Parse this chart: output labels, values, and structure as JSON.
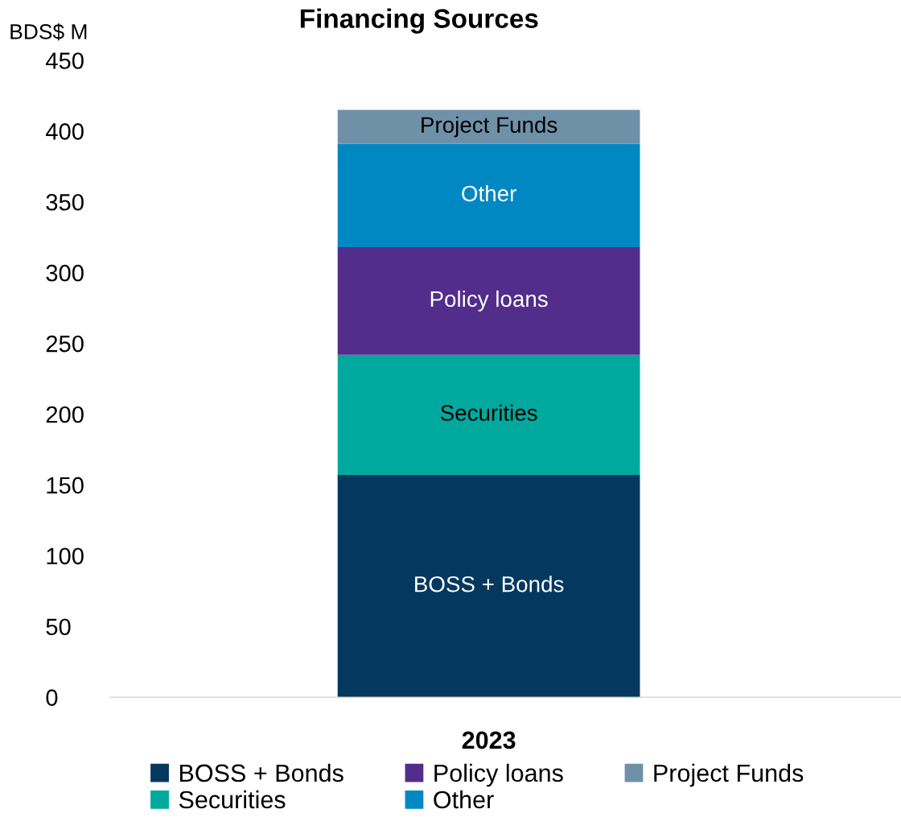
{
  "chart_data": {
    "type": "bar",
    "stacked": true,
    "title": "Financing Sources",
    "ylabel": "BDS$ M",
    "categories": [
      "2023"
    ],
    "series": [
      {
        "name": "BOSS + Bonds",
        "color": "#05385f",
        "values": [
          157
        ]
      },
      {
        "name": "Securities",
        "color": "#00a99d",
        "values": [
          85
        ]
      },
      {
        "name": "Policy loans",
        "color": "#532d8c",
        "values": [
          76
        ]
      },
      {
        "name": "Other",
        "color": "#0088c2",
        "values": [
          73
        ]
      },
      {
        "name": "Project Funds",
        "color": "#6f91a8",
        "values": [
          24
        ]
      }
    ],
    "ylim": [
      0,
      450
    ],
    "yticks": [
      0,
      50,
      100,
      150,
      200,
      250,
      300,
      350,
      400,
      450
    ],
    "grid": false,
    "legend": "bottom"
  }
}
